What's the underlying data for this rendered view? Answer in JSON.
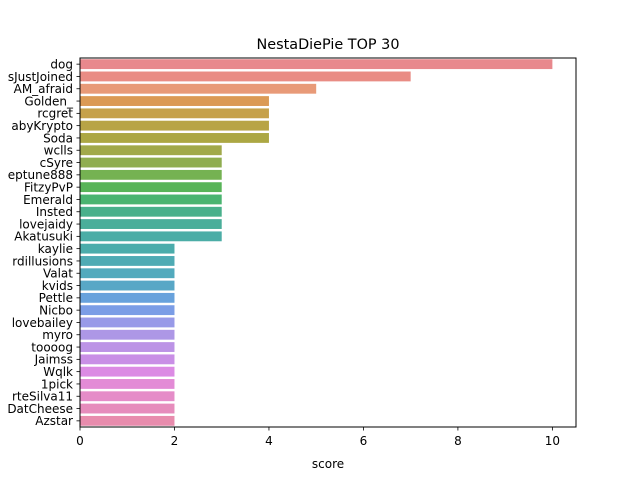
{
  "chart_data": {
    "type": "bar",
    "orientation": "horizontal",
    "title": "NestaDiePie TOP 30",
    "xlabel": "score",
    "ylabel": "",
    "xlim": [
      0,
      10.5
    ],
    "xticks": [
      0,
      2,
      4,
      6,
      8,
      10
    ],
    "grid": false,
    "categories": [
      "dog",
      "sJustJoined",
      "AM_afraid",
      "Golden_",
      "rcgret",
      "abyKrypto",
      "Soda",
      "wclls",
      "cSyre",
      "eptune888",
      "FitzyPvP",
      "Emerald",
      "Insted",
      "lovejaidy",
      "Akatusuki",
      "kaylie",
      "rdillusions",
      "Valat",
      "kvids",
      "Pettle",
      "Nicbo",
      "lovebailey",
      "myro",
      "toooog",
      "Jaimss",
      "Wqlk",
      "1pick",
      "rteSilva11",
      "DatCheese",
      "Azstar"
    ],
    "values": [
      10,
      7,
      5,
      4,
      4,
      4,
      4,
      3,
      3,
      3,
      3,
      3,
      3,
      3,
      3,
      2,
      2,
      2,
      2,
      2,
      2,
      2,
      2,
      2,
      2,
      2,
      2,
      2,
      2,
      2
    ],
    "colors": [
      "#e8888d",
      "#e98c84",
      "#e89a78",
      "#db9a55",
      "#c6a14a",
      "#b8a446",
      "#aca743",
      "#a1a94a",
      "#8fad4f",
      "#75b252",
      "#58b458",
      "#4ab470",
      "#49b08b",
      "#4aae9a",
      "#4bada6",
      "#4bacab",
      "#4fabb4",
      "#52aabd",
      "#58a7c6",
      "#68a2dc",
      "#7b9de6",
      "#989ae8",
      "#ad97e6",
      "#bc93e6",
      "#c98fe6",
      "#dc8be4",
      "#e38bd6",
      "#e58cc8",
      "#e68cbc",
      "#e88cad"
    ]
  }
}
